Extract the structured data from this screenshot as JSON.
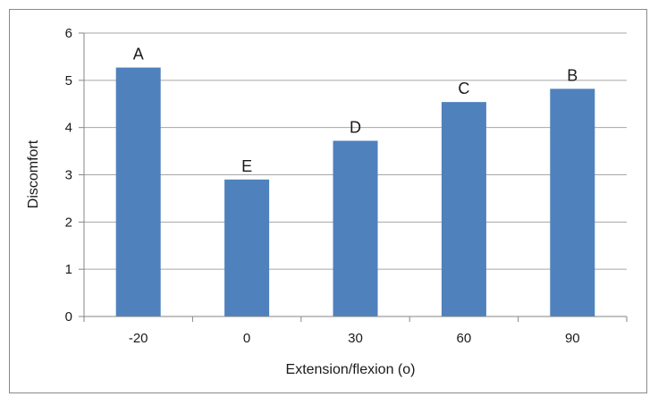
{
  "chart_data": {
    "type": "bar",
    "categories": [
      "-20",
      "0",
      "30",
      "60",
      "90"
    ],
    "values": [
      5.27,
      2.9,
      3.72,
      4.54,
      4.82
    ],
    "data_labels": [
      "A",
      "E",
      "D",
      "C",
      "B"
    ],
    "title": "",
    "xlabel": "Extension/flexion (o)",
    "ylabel": "Discomfort",
    "ylim": [
      0,
      6
    ],
    "yticks": [
      "0",
      "1",
      "2",
      "3",
      "4",
      "5",
      "6"
    ],
    "grid": true,
    "legend": "none",
    "colors": {
      "bar": "#4f81bd",
      "grid": "#a6a6a6",
      "axis": "#868686"
    }
  }
}
